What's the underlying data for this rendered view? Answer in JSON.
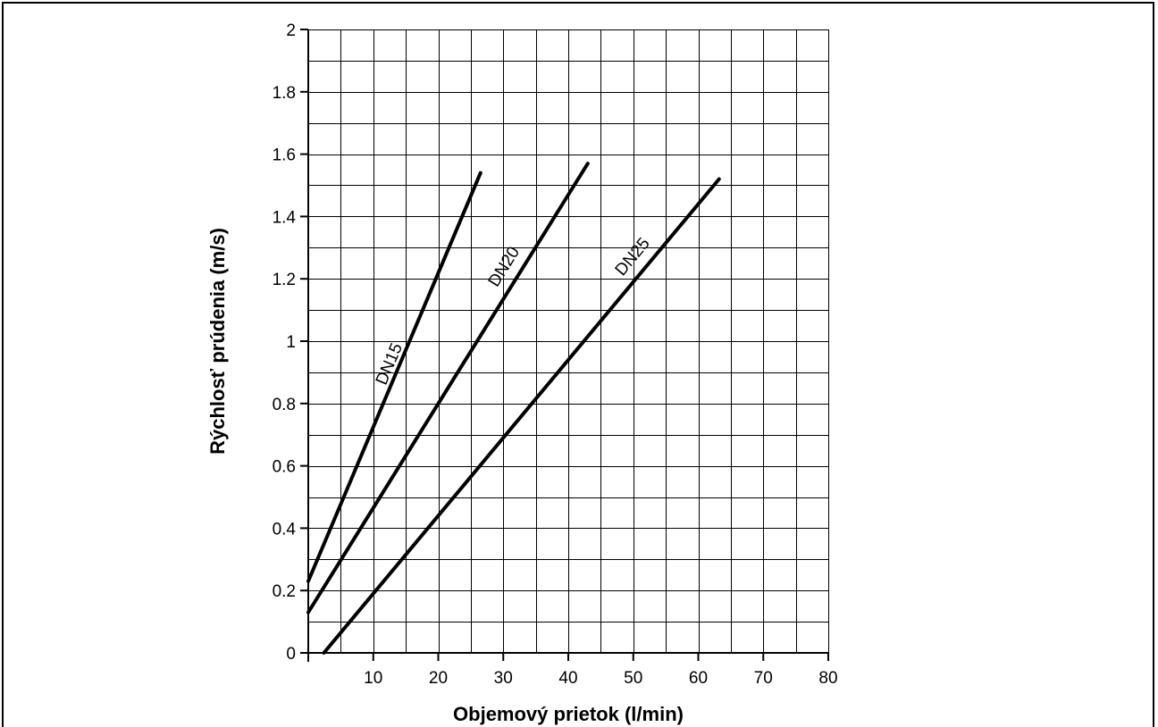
{
  "chart_data": {
    "type": "line",
    "xlabel": "Objemový prietok (l/min)",
    "ylabel": "Rýchlosť prúdenia (m/s)",
    "xlim": [
      0,
      80
    ],
    "ylim": [
      0,
      2
    ],
    "x_ticks": [
      10,
      20,
      30,
      40,
      50,
      60,
      70,
      80
    ],
    "x_tick_labels": [
      "10",
      "20",
      "30",
      "40",
      "50",
      "60",
      "70",
      "80"
    ],
    "y_ticks": [
      0,
      0.2,
      0.4,
      0.6,
      0.8,
      1,
      1.2,
      1.4,
      1.6,
      1.8,
      2
    ],
    "y_tick_labels": [
      "0",
      "0.2",
      "0.4",
      "0.6",
      "0.8",
      "1",
      "1.2",
      "1.4",
      "1.6",
      "1.8",
      "2"
    ],
    "grid": true,
    "grid_minor_x": 5,
    "grid_minor_y": 0.1,
    "series": [
      {
        "name": "DN15",
        "points": [
          [
            0,
            0.23
          ],
          [
            26.5,
            1.54
          ]
        ],
        "label_at": [
          13.2,
          0.92
        ]
      },
      {
        "name": "DN20",
        "points": [
          [
            0,
            0.13
          ],
          [
            43,
            1.57
          ]
        ],
        "label_at": [
          30.8,
          1.23
        ]
      },
      {
        "name": "DN25",
        "points": [
          [
            2.4,
            0
          ],
          [
            63.2,
            1.52
          ]
        ],
        "label_at": [
          50.5,
          1.26
        ]
      }
    ],
    "line_color": "#000000"
  }
}
